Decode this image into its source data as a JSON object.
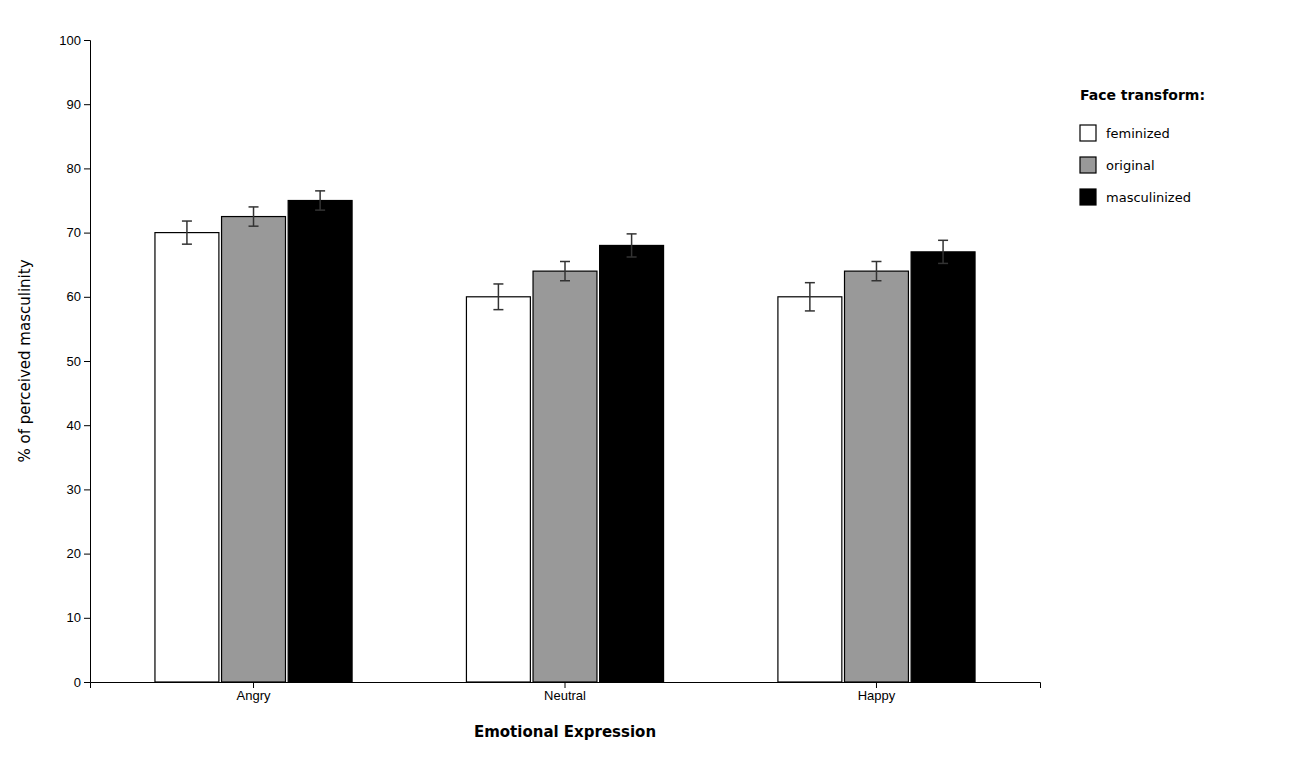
{
  "chart_data": {
    "type": "bar",
    "categories": [
      "Angry",
      "Neutral",
      "Happy"
    ],
    "series": [
      {
        "name": "feminized",
        "color": "#ffffff",
        "values": [
          70.0,
          60.0,
          60.0
        ],
        "errors": [
          1.8,
          2.0,
          2.2
        ]
      },
      {
        "name": "original",
        "color": "#999999",
        "values": [
          72.5,
          64.0,
          64.0
        ],
        "errors": [
          1.5,
          1.5,
          1.5
        ]
      },
      {
        "name": "masculinized",
        "color": "#000000",
        "values": [
          75.0,
          68.0,
          67.0
        ],
        "errors": [
          1.5,
          1.8,
          1.8
        ]
      }
    ],
    "xlabel": "Emotional Expression",
    "ylabel": "% of perceived masculinity",
    "legend_title": "Face transform:",
    "ylim": [
      0,
      100
    ],
    "yticks": [
      0,
      10,
      20,
      30,
      40,
      50,
      60,
      70,
      80,
      90,
      100
    ],
    "grid": false,
    "legend": "right"
  }
}
